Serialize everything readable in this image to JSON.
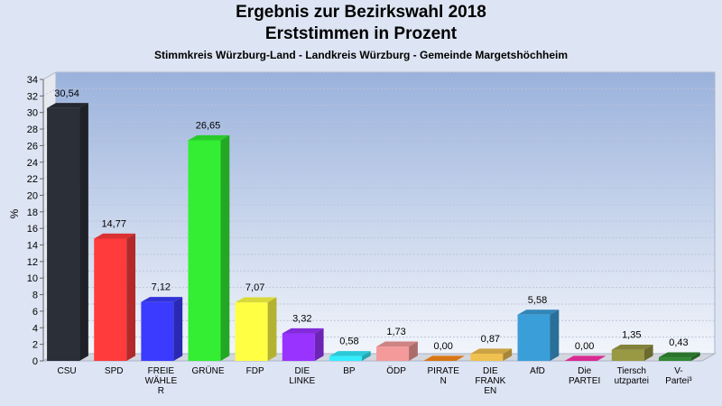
{
  "chart_data": {
    "type": "bar",
    "title": "Ergebnis zur Bezirkswahl 2018",
    "title_line2": "Erststimmen in Prozent",
    "subtitle": "Stimmkreis Würzburg-Land - Landkreis Würzburg - Gemeinde Margetshöchheim",
    "ylabel": "%",
    "xlabel": "",
    "ylim": [
      0,
      34
    ],
    "yticks": [
      0,
      2,
      4,
      6,
      8,
      10,
      12,
      14,
      16,
      18,
      20,
      22,
      24,
      26,
      28,
      30,
      32,
      34
    ],
    "grid": true,
    "categories": [
      [
        "CSU"
      ],
      [
        "SPD"
      ],
      [
        "FREIE",
        "WÄHLE",
        "R"
      ],
      [
        "GRÜNE"
      ],
      [
        "FDP"
      ],
      [
        "DIE",
        "LINKE"
      ],
      [
        "BP"
      ],
      [
        "ÖDP"
      ],
      [
        "PIRATE",
        "N"
      ],
      [
        "DIE",
        "FRANK",
        "EN"
      ],
      [
        "AfD"
      ],
      [
        "Die",
        "PARTEI"
      ],
      [
        "Tiersch",
        "utzpartei"
      ],
      [
        "V-",
        "Partei³"
      ]
    ],
    "values": [
      30.54,
      14.77,
      7.12,
      26.65,
      7.07,
      3.32,
      0.58,
      1.73,
      0.0,
      0.87,
      5.58,
      0.0,
      1.35,
      0.43
    ],
    "value_labels": [
      "30,54",
      "14,77",
      "7,12",
      "26,65",
      "7,07",
      "3,32",
      "0,58",
      "1,73",
      "0,00",
      "0,87",
      "5,58",
      "0,00",
      "1,35",
      "0,43"
    ],
    "colors": [
      "#2b2f38",
      "#ff3b3b",
      "#3b3bff",
      "#33ee33",
      "#ffff44",
      "#9933ff",
      "#33eeff",
      "#f49a9a",
      "#ff8c1a",
      "#f0c050",
      "#3a9ed8",
      "#ff33aa",
      "#999944",
      "#338833"
    ]
  }
}
